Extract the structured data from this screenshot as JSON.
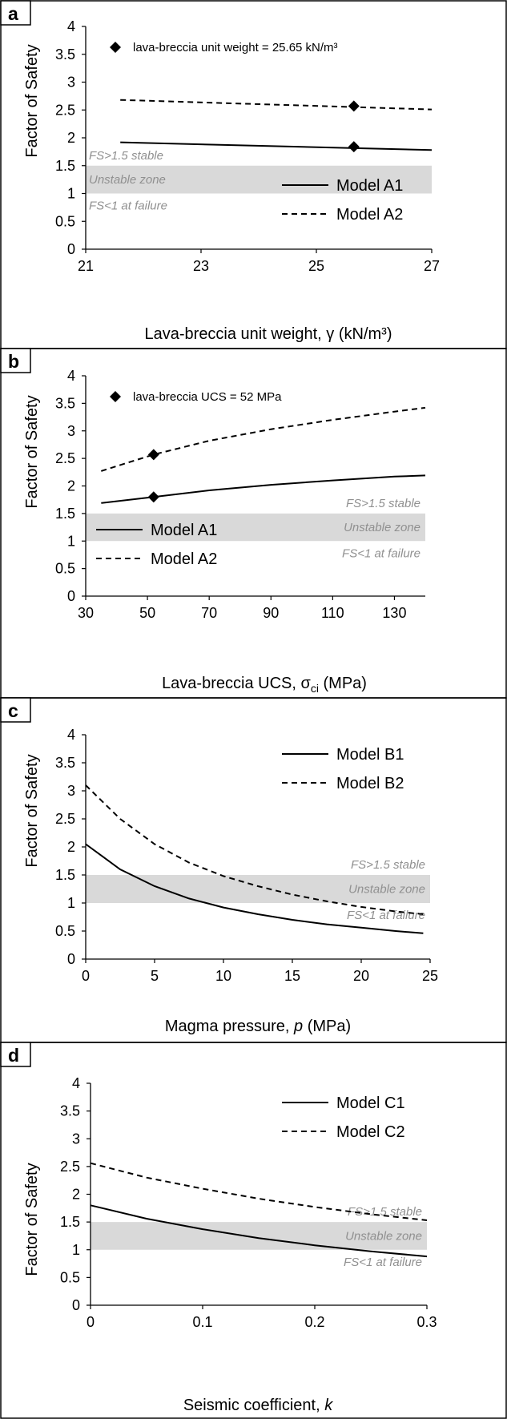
{
  "chart_data": [
    {
      "panel": "a",
      "type": "line",
      "xlabel": "Lava-breccia unit weight, γ (kN/m³)",
      "ylabel": "Factor of Safety",
      "xlim": [
        21,
        27
      ],
      "ylim": [
        0,
        4
      ],
      "xticks": [
        21,
        23,
        25,
        27
      ],
      "yticks": [
        0,
        0.5,
        1,
        1.5,
        2,
        2.5,
        3,
        3.5,
        4
      ],
      "ytick_labels": [
        "0",
        "0.5",
        "1",
        "1.5",
        "2",
        "2.5",
        "3",
        "3.5",
        "4"
      ],
      "legend_position": "bottom-right",
      "zone_position": "left",
      "unstable_zone": [
        1,
        1.5
      ],
      "zone_labels": {
        "stable": "FS>1.5 stable",
        "unstable": "Unstable zone",
        "failure": "FS<1 at failure"
      },
      "marker_label": "lava-breccia unit weight = 25.65 kN/m³",
      "marker_x": 25.65,
      "series": [
        {
          "name": "Model A1",
          "style": "solid",
          "x": [
            21.6,
            27
          ],
          "y": [
            1.92,
            1.78
          ],
          "marker_y": 1.84
        },
        {
          "name": "Model A2",
          "style": "dashed",
          "x": [
            21.6,
            27
          ],
          "y": [
            2.68,
            2.51
          ],
          "marker_y": 2.57
        }
      ]
    },
    {
      "panel": "b",
      "type": "line",
      "xlabel": "Lava-breccia UCS, σci (MPa)",
      "ylabel": "Factor of Safety",
      "xlim": [
        30,
        140
      ],
      "ylim": [
        0,
        4
      ],
      "xticks": [
        30,
        50,
        70,
        90,
        110,
        130
      ],
      "yticks": [
        0,
        0.5,
        1,
        1.5,
        2,
        2.5,
        3,
        3.5,
        4
      ],
      "ytick_labels": [
        "0",
        "0.5",
        "1",
        "1.5",
        "2",
        "2.5",
        "3",
        "3.5",
        "4"
      ],
      "legend_position": "bottom-left",
      "zone_position": "right",
      "unstable_zone": [
        1,
        1.5
      ],
      "zone_labels": {
        "stable": "FS>1.5 stable",
        "unstable": "Unstable zone",
        "failure": "FS<1 at failure"
      },
      "marker_label": "lava-breccia UCS = 52 MPa",
      "marker_x": 52,
      "series": [
        {
          "name": "Model A1",
          "style": "solid",
          "x": [
            35,
            52,
            70,
            90,
            110,
            130,
            140
          ],
          "y": [
            1.69,
            1.8,
            1.92,
            2.02,
            2.1,
            2.17,
            2.19
          ],
          "marker_y": 1.8
        },
        {
          "name": "Model A2",
          "style": "dashed",
          "x": [
            35,
            52,
            70,
            90,
            110,
            130,
            140
          ],
          "y": [
            2.27,
            2.57,
            2.82,
            3.03,
            3.2,
            3.35,
            3.42
          ],
          "marker_y": 2.57
        }
      ]
    },
    {
      "panel": "c",
      "type": "line",
      "xlabel": "Magma pressure, p (MPa)",
      "ylabel": "Factor of Safety",
      "xlim": [
        0,
        25
      ],
      "ylim": [
        0,
        4
      ],
      "xticks": [
        0,
        5,
        10,
        15,
        20,
        25
      ],
      "yticks": [
        0,
        0.5,
        1,
        1.5,
        2,
        2.5,
        3,
        3.5,
        4
      ],
      "ytick_labels": [
        "0",
        "0.5",
        "1",
        "1.5",
        "2",
        "2.5",
        "3",
        "3.5",
        "4"
      ],
      "legend_position": "top-right",
      "zone_position": "right",
      "unstable_zone": [
        1,
        1.5
      ],
      "zone_labels": {
        "stable": "FS>1.5 stable",
        "unstable": "Unstable zone",
        "failure": "FS<1 at failure"
      },
      "series": [
        {
          "name": "Model B1",
          "style": "solid",
          "x": [
            0,
            2.5,
            5,
            7.5,
            10,
            12.5,
            15,
            17.5,
            20,
            22.5,
            24.5
          ],
          "y": [
            2.05,
            1.6,
            1.3,
            1.08,
            0.92,
            0.8,
            0.7,
            0.62,
            0.56,
            0.5,
            0.46
          ]
        },
        {
          "name": "Model B2",
          "style": "dashed",
          "x": [
            0,
            2.5,
            5,
            7.5,
            10,
            12.5,
            15,
            17.5,
            20,
            22.5,
            24.5
          ],
          "y": [
            3.1,
            2.5,
            2.05,
            1.72,
            1.48,
            1.3,
            1.15,
            1.03,
            0.93,
            0.85,
            0.8
          ]
        }
      ]
    },
    {
      "panel": "d",
      "type": "line",
      "xlabel": "Seismic coefficient, k",
      "ylabel": "Factor of Safety",
      "xlim": [
        0,
        0.3
      ],
      "ylim": [
        0,
        4
      ],
      "xticks": [
        0,
        0.1,
        0.2,
        0.3
      ],
      "yticks": [
        0,
        0.5,
        1,
        1.5,
        2,
        2.5,
        3,
        3.5,
        4
      ],
      "ytick_labels": [
        "0",
        "0.5",
        "1",
        "1.5",
        "2",
        "2.5",
        "3",
        "3.5",
        "4"
      ],
      "legend_position": "top-right",
      "zone_position": "right",
      "unstable_zone": [
        1,
        1.5
      ],
      "zone_labels": {
        "stable": "FS>1.5 stable",
        "unstable": "Unstable zone",
        "failure": "FS<1 at failure"
      },
      "series": [
        {
          "name": "Model C1",
          "style": "solid",
          "x": [
            0,
            0.05,
            0.1,
            0.15,
            0.2,
            0.25,
            0.3
          ],
          "y": [
            1.8,
            1.56,
            1.37,
            1.21,
            1.08,
            0.97,
            0.88
          ]
        },
        {
          "name": "Model C2",
          "style": "dashed",
          "x": [
            0,
            0.05,
            0.1,
            0.15,
            0.2,
            0.25,
            0.3
          ],
          "y": [
            2.56,
            2.3,
            2.1,
            1.92,
            1.77,
            1.64,
            1.53
          ]
        }
      ]
    }
  ]
}
